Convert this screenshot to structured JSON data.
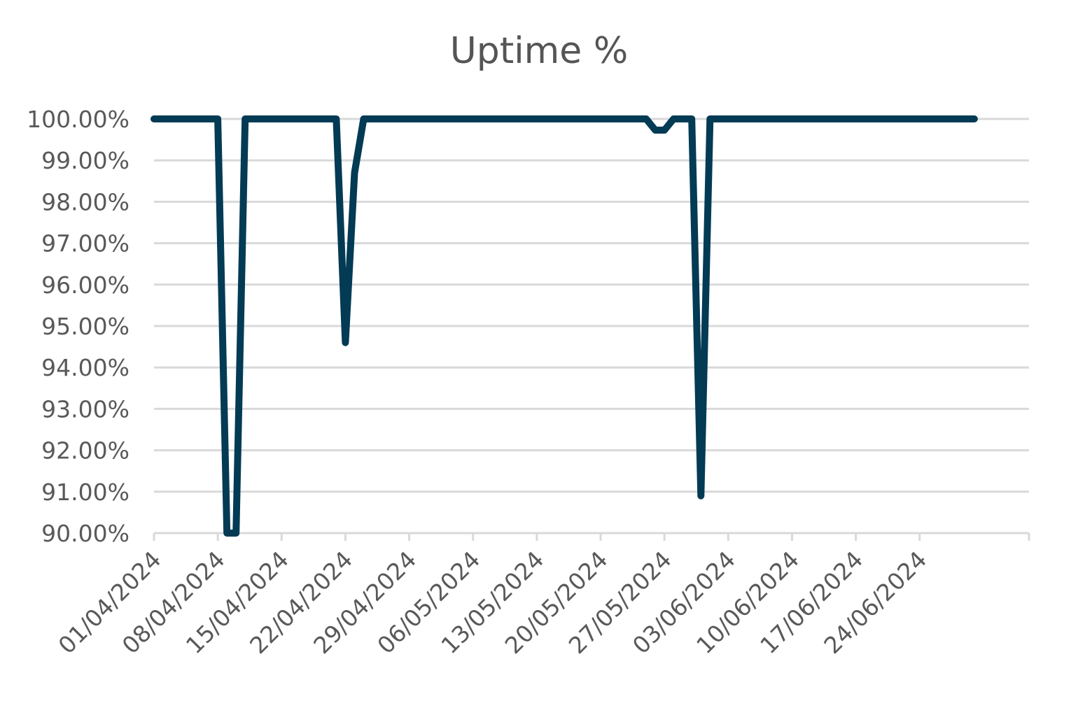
{
  "chart_data": {
    "type": "line",
    "title": "Uptime %",
    "xlabel": "",
    "ylabel": "",
    "x_start": "01/04/2024",
    "x_end": "30/06/2024",
    "xlim": [
      "01/04/2024",
      "06/07/2024"
    ],
    "ylim": [
      90,
      100
    ],
    "y_ticks": [
      90,
      91,
      92,
      93,
      94,
      95,
      96,
      97,
      98,
      99,
      100
    ],
    "y_tick_labels": [
      "90.00%",
      "91.00%",
      "92.00%",
      "93.00%",
      "94.00%",
      "95.00%",
      "96.00%",
      "97.00%",
      "98.00%",
      "99.00%",
      "100.00%"
    ],
    "x_tick_labels": [
      "01/04/2024",
      "08/04/2024",
      "15/04/2024",
      "22/04/2024",
      "29/04/2024",
      "06/05/2024",
      "13/05/2024",
      "20/05/2024",
      "27/05/2024",
      "03/06/2024",
      "10/06/2024",
      "17/06/2024",
      "24/06/2024"
    ],
    "grid": true,
    "line_color": "#033a54",
    "series": [
      {
        "x": [
          "01/04/2024",
          "08/04/2024",
          "09/04/2024",
          "10/04/2024",
          "11/04/2024",
          "21/04/2024",
          "22/04/2024",
          "23/04/2024",
          "24/04/2024",
          "25/05/2024",
          "26/05/2024",
          "27/05/2024",
          "28/05/2024",
          "30/05/2024",
          "31/05/2024",
          "01/06/2024",
          "30/06/2024"
        ],
        "values": [
          100,
          100,
          90,
          90,
          100,
          100,
          94.6,
          98.7,
          100,
          100,
          99.73,
          99.73,
          100,
          100,
          90.9,
          100,
          100
        ]
      }
    ]
  }
}
